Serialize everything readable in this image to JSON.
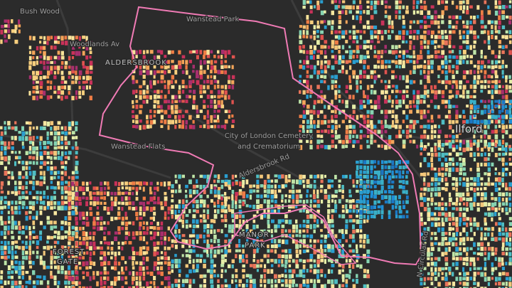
{
  "places": [
    {
      "label": "Bush Wood"
    },
    {
      "label": "Wanstead Park"
    },
    {
      "label": "Woodlands Av"
    },
    {
      "label": "ALDERSBROOK"
    },
    {
      "label": "Wanstead Flats"
    },
    {
      "label": "City of London Cemetery"
    },
    {
      "label": "and Crematorium"
    },
    {
      "label": "Aldersbrook Rd"
    },
    {
      "label": "Ilford"
    },
    {
      "label": "N Circular Rd"
    },
    {
      "label": "MANOR"
    },
    {
      "label": "PARK"
    },
    {
      "label": "FOREST"
    },
    {
      "label": "GATE"
    }
  ]
}
